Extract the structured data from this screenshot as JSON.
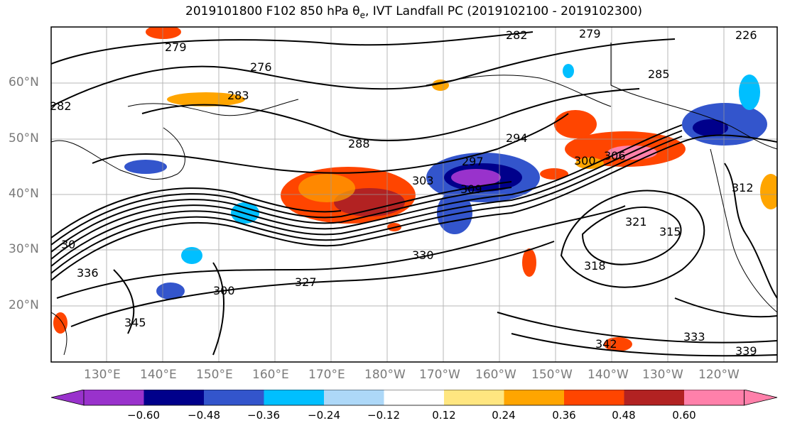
{
  "title": "2019101800 F102 850 hPa θe, IVT Landfall PC (2019102100 - 2019102300)",
  "lat_labels": [
    "60°N",
    "50°N",
    "40°N",
    "30°N",
    "20°N"
  ],
  "lon_labels": [
    "130°E",
    "140°E",
    "150°E",
    "160°E",
    "170°E",
    "180°W",
    "170°W",
    "160°W",
    "150°W",
    "140°W",
    "130°W",
    "120°W"
  ],
  "contour_labels": [
    "282",
    "279",
    "226",
    "279",
    "276",
    "285",
    "282",
    "283",
    "288",
    "294",
    "297",
    "300",
    "306",
    "309",
    "303",
    "312",
    "315",
    "318",
    "321",
    "327",
    "330",
    "336",
    "339",
    "342",
    "345",
    "333",
    "30",
    "300"
  ],
  "colorbar": {
    "colors": [
      "#9932cc",
      "#00008b",
      "#3355cc",
      "#00bfff",
      "#add8f8",
      "#ffffff",
      "#ffe680",
      "#ffa500",
      "#ff4500",
      "#b22222",
      "#ff80aa"
    ],
    "tick_labels": [
      "−0.60",
      "−0.48",
      "−0.36",
      "−0.24",
      "−0.12",
      "0.12",
      "0.24",
      "0.36",
      "0.48",
      "0.60"
    ]
  },
  "axis_label_color": "#7a7a7a"
}
